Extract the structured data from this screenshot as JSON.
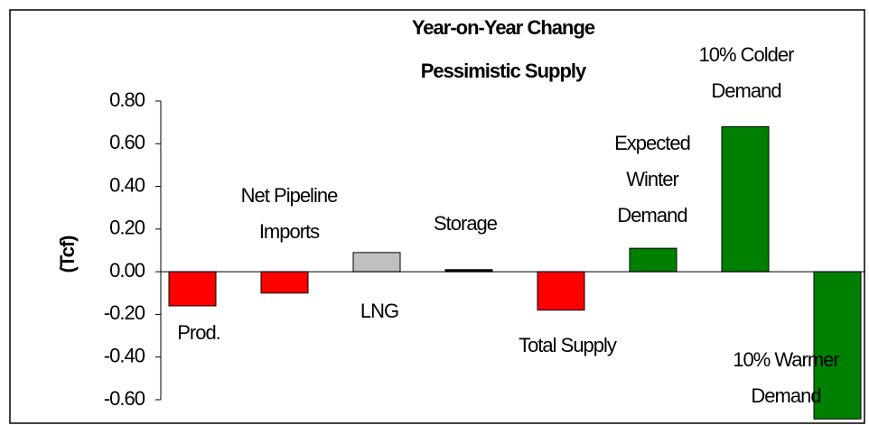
{
  "chart_data": {
    "type": "bar",
    "title": "Year-on-Year Change",
    "subtitle": "Pessimistic Supply",
    "y_label": "(Tcf)",
    "categories": [
      [
        "Prod."
      ],
      [
        "Net Pipeline",
        "Imports"
      ],
      [
        "LNG"
      ],
      [
        "Storage"
      ],
      [
        "Total Supply"
      ],
      [
        "Expected",
        "Winter",
        "Demand"
      ],
      [
        "10% Colder",
        "Demand"
      ],
      [
        "10% Warmer",
        "Demand"
      ]
    ],
    "values": [
      -0.16,
      -0.1,
      0.09,
      0.01,
      -0.18,
      0.11,
      0.68,
      -0.69
    ],
    "colors": [
      "#ff0000",
      "#ff0000",
      "#c0c0c0",
      "#000000",
      "#ff0000",
      "#008000",
      "#008000",
      "#008000"
    ],
    "ylim": [
      -0.6,
      0.8
    ],
    "yticks": [
      {
        "value": -0.6,
        "label": "-0.60"
      },
      {
        "value": -0.4,
        "label": "-0.40"
      },
      {
        "value": -0.2,
        "label": "-0.20"
      },
      {
        "value": 0,
        "label": "0.00"
      },
      {
        "value": 0.2,
        "label": "0.20"
      },
      {
        "value": 0.4,
        "label": "0.40"
      },
      {
        "value": 0.6,
        "label": "0.60"
      },
      {
        "value": 0.8,
        "label": "0.80"
      }
    ],
    "grid": false
  }
}
